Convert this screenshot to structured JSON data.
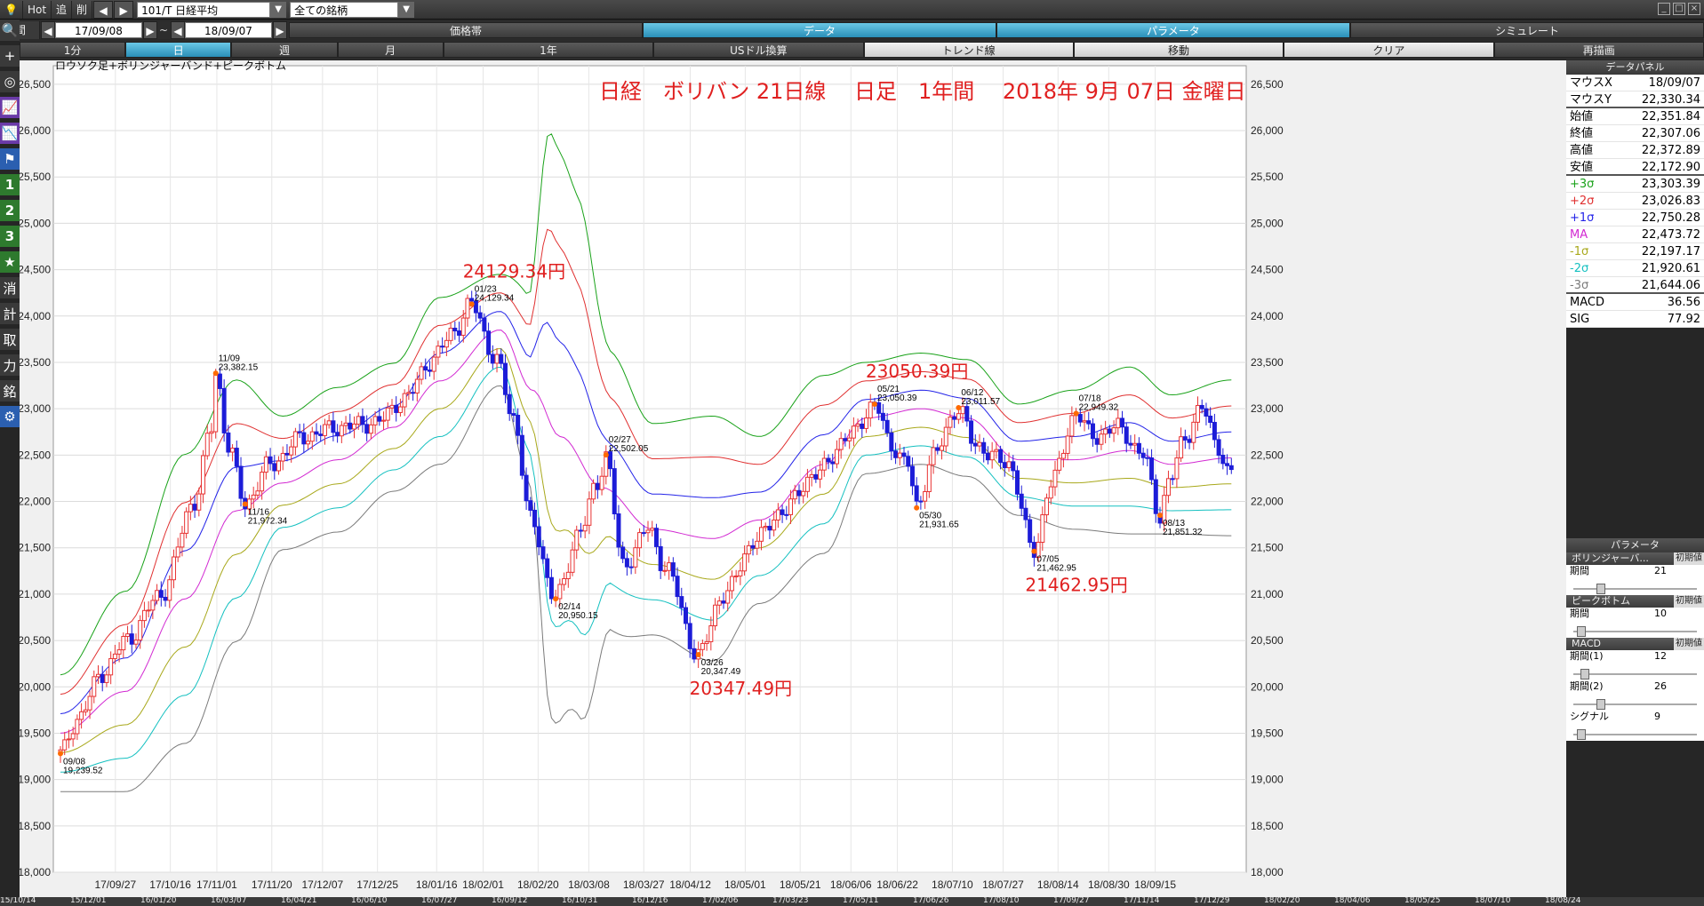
{
  "toolbar": {
    "hot": "Hot",
    "add": "追",
    "del": "削",
    "symbol": "101/T 日経平均",
    "all_symbols": "全ての銘柄",
    "period_label": "期間",
    "date_from": "17/09/08",
    "tilde": "~",
    "date_to": "18/09/07"
  },
  "tabs_row1": [
    "価格帯",
    "データ",
    "パラメータ",
    "シミュレート"
  ],
  "tabs_row2": [
    "1分",
    "日",
    "週",
    "月",
    "1年",
    "USドル換算",
    "トレンド線",
    "移動",
    "クリア",
    "再描画"
  ],
  "left_tools": [
    "🔍",
    "+",
    "◎",
    "📈",
    "📉",
    "⚑",
    "1",
    "2",
    "3",
    "★",
    "消",
    "計",
    "取",
    "力",
    "銘",
    "⚙"
  ],
  "chart_data": {
    "type": "candlestick",
    "chart_label": "ロウソク足+ボリンジャーバンド+ピークボトム",
    "title": "日経　ボリバン 21日線　 日足　1年間　 2018年 9月 07日 金曜日",
    "ylim": [
      18000,
      26700
    ],
    "yticks": [
      18000,
      18500,
      19000,
      19500,
      20000,
      20500,
      21000,
      21500,
      22000,
      22500,
      23000,
      23500,
      24000,
      24500,
      25000,
      25500,
      26000,
      26500
    ],
    "ytick_labels": [
      "18,000",
      "18,500",
      "19,000",
      "19,500",
      "20,000",
      "20,500",
      "21,000",
      "21,500",
      "22,000",
      "22,500",
      "23,000",
      "23,500",
      "24,000",
      "24,500",
      "25,000",
      "25,500",
      "26,000",
      "26,500"
    ],
    "xtick_labels": [
      "17/09/27",
      "17/10/16",
      "17/11/01",
      "17/11/20",
      "17/12/07",
      "17/12/25",
      "18/01/16",
      "18/02/01",
      "18/02/20",
      "18/03/08",
      "18/03/27",
      "18/04/12",
      "18/05/01",
      "18/05/21",
      "18/06/06",
      "18/06/22",
      "18/07/10",
      "18/07/27",
      "18/08/14",
      "18/08/30",
      "18/09/15"
    ],
    "xtick_index": [
      13,
      26,
      37,
      50,
      62,
      75,
      89,
      100,
      113,
      125,
      138,
      149,
      162,
      175,
      187,
      198,
      211,
      223,
      236,
      248,
      259
    ],
    "n": 254,
    "mid_knots": [
      [
        0,
        19500
      ],
      [
        14,
        19950
      ],
      [
        27,
        20950
      ],
      [
        38,
        21900
      ],
      [
        48,
        22200
      ],
      [
        60,
        22450
      ],
      [
        72,
        22800
      ],
      [
        82,
        23300
      ],
      [
        95,
        23850
      ],
      [
        102,
        23200
      ],
      [
        108,
        22700
      ],
      [
        117,
        22150
      ],
      [
        128,
        21700
      ],
      [
        141,
        21600
      ],
      [
        151,
        21800
      ],
      [
        165,
        22400
      ],
      [
        174,
        22900
      ],
      [
        186,
        23000
      ],
      [
        196,
        22900
      ],
      [
        207,
        22450
      ],
      [
        219,
        22450
      ],
      [
        231,
        22550
      ],
      [
        240,
        22400
      ],
      [
        253,
        22470
      ]
    ],
    "sd_knots": [
      [
        0,
        210
      ],
      [
        14,
        360
      ],
      [
        27,
        520
      ],
      [
        38,
        470
      ],
      [
        48,
        240
      ],
      [
        60,
        260
      ],
      [
        72,
        230
      ],
      [
        82,
        300
      ],
      [
        95,
        200
      ],
      [
        101,
        330
      ],
      [
        106,
        1050
      ],
      [
        112,
        930
      ],
      [
        119,
        500
      ],
      [
        128,
        380
      ],
      [
        141,
        440
      ],
      [
        151,
        300
      ],
      [
        165,
        320
      ],
      [
        174,
        200
      ],
      [
        186,
        200
      ],
      [
        196,
        210
      ],
      [
        207,
        200
      ],
      [
        219,
        250
      ],
      [
        231,
        300
      ],
      [
        240,
        250
      ],
      [
        253,
        280
      ]
    ],
    "band_colors": {
      "p3": "#19a219",
      "p2": "#e03030",
      "p1": "#2323e8",
      "ma": "#d22ad2",
      "m1": "#a8a81a",
      "m2": "#14c0c0",
      "m3": "#7a7a7a"
    },
    "up_color": "#e83333",
    "down_color": "#1c1cd8",
    "price_knots": [
      [
        0,
        19280
      ],
      [
        4,
        19650
      ],
      [
        10,
        20150
      ],
      [
        16,
        20520
      ],
      [
        24,
        21000
      ],
      [
        32,
        22000
      ],
      [
        36,
        22800
      ],
      [
        37,
        23382
      ],
      [
        40,
        22600
      ],
      [
        44,
        21972
      ],
      [
        50,
        22400
      ],
      [
        58,
        22700
      ],
      [
        66,
        22800
      ],
      [
        75,
        22850
      ],
      [
        82,
        23100
      ],
      [
        88,
        23500
      ],
      [
        94,
        23850
      ],
      [
        98,
        24129
      ],
      [
        104,
        23500
      ],
      [
        108,
        22900
      ],
      [
        112,
        21800
      ],
      [
        118,
        20950
      ],
      [
        124,
        21700
      ],
      [
        128,
        22200
      ],
      [
        130,
        22502
      ],
      [
        134,
        21300
      ],
      [
        140,
        21700
      ],
      [
        144,
        21300
      ],
      [
        152,
        20347
      ],
      [
        158,
        21000
      ],
      [
        166,
        21600
      ],
      [
        172,
        21900
      ],
      [
        180,
        22300
      ],
      [
        188,
        22700
      ],
      [
        194,
        23050
      ],
      [
        198,
        22600
      ],
      [
        202,
        22400
      ],
      [
        204,
        21931
      ],
      [
        208,
        22500
      ],
      [
        214,
        23011
      ],
      [
        218,
        22600
      ],
      [
        226,
        22400
      ],
      [
        232,
        21462
      ],
      [
        236,
        22200
      ],
      [
        242,
        22949
      ],
      [
        246,
        22700
      ],
      [
        252,
        22800
      ],
      [
        258,
        22500
      ],
      [
        262,
        21851
      ],
      [
        264,
        22200
      ],
      [
        268,
        22700
      ],
      [
        272,
        23000
      ],
      [
        276,
        22600
      ],
      [
        278,
        22300
      ]
    ],
    "peaks": [
      {
        "i": 0,
        "date": "09/08",
        "value": "19,239.52",
        "pos": "below"
      },
      {
        "i": 37,
        "date": "11/09",
        "value": "23,382.15",
        "pos": "above"
      },
      {
        "i": 44,
        "date": "11/16",
        "value": "21,972.34",
        "pos": "below"
      },
      {
        "i": 98,
        "date": "01/23",
        "value": "24,129.34",
        "pos": "above"
      },
      {
        "i": 118,
        "date": "02/14",
        "value": "20,950.15",
        "pos": "below"
      },
      {
        "i": 130,
        "date": "02/27",
        "value": "22,502.05",
        "pos": "above"
      },
      {
        "i": 152,
        "date": "03/26",
        "value": "20,347.49",
        "pos": "below"
      },
      {
        "i": 194,
        "date": "05/21",
        "value": "23,050.39",
        "pos": "above"
      },
      {
        "i": 204,
        "date": "05/30",
        "value": "21,931.65",
        "pos": "below"
      },
      {
        "i": 214,
        "date": "06/12",
        "value": "23,011.57",
        "pos": "above"
      },
      {
        "i": 232,
        "date": "07/05",
        "value": "21,462.95",
        "pos": "below"
      },
      {
        "i": 242,
        "date": "07/18",
        "value": "22,949.32",
        "pos": "above"
      },
      {
        "i": 262,
        "date": "08/13",
        "value": "21,851.32",
        "pos": "below"
      }
    ],
    "big_labels": [
      {
        "text": "24129.34円",
        "i": 98,
        "v": 24129.34,
        "dy": -30
      },
      {
        "text": "23050.39円",
        "i": 194,
        "v": 23050.39,
        "dy": -30
      },
      {
        "text": "20347.49円",
        "i": 152,
        "v": 20347.49,
        "dy": 45
      },
      {
        "text": "21462.95円",
        "i": 232,
        "v": 21462.95,
        "dy": 45
      }
    ]
  },
  "data_panel": {
    "header": "データパネル",
    "rows": [
      {
        "k": "マウスX",
        "v": "18/09/07",
        "c": "#000"
      },
      {
        "k": "マウスY",
        "v": "22,330.34",
        "c": "#000",
        "div": true
      },
      {
        "k": "始値",
        "v": "22,351.84",
        "c": "#000"
      },
      {
        "k": "終値",
        "v": "22,307.06",
        "c": "#000"
      },
      {
        "k": "高値",
        "v": "22,372.89",
        "c": "#000"
      },
      {
        "k": "安値",
        "v": "22,172.90",
        "c": "#000",
        "div": true
      },
      {
        "k": "+3σ",
        "v": "23,303.39",
        "c": "#19a219"
      },
      {
        "k": "+2σ",
        "v": "23,026.83",
        "c": "#e03030"
      },
      {
        "k": "+1σ",
        "v": "22,750.28",
        "c": "#2323e8"
      },
      {
        "k": "MA",
        "v": "22,473.72",
        "c": "#d22ad2"
      },
      {
        "k": "-1σ",
        "v": "22,197.17",
        "c": "#a8a81a"
      },
      {
        "k": "-2σ",
        "v": "21,920.61",
        "c": "#14c0c0"
      },
      {
        "k": "-3σ",
        "v": "21,644.06",
        "c": "#7a7a7a",
        "div": true
      },
      {
        "k": "MACD",
        "v": "36.56",
        "c": "#000"
      },
      {
        "k": "SIG",
        "v": "77.92",
        "c": "#000"
      }
    ]
  },
  "params": {
    "header": "パラメータ",
    "groups": [
      {
        "name": "ボリンジャーバ...",
        "init": "初期値",
        "items": [
          {
            "label": "期間",
            "value": "21",
            "pos": 0.2
          }
        ]
      },
      {
        "name": "ピークボトム",
        "init": "初期値",
        "items": [
          {
            "label": "期間",
            "value": "10",
            "pos": 0.03
          }
        ]
      },
      {
        "name": "MACD",
        "init": "初期値",
        "items": [
          {
            "label": "期間(1)",
            "value": "12",
            "pos": 0.06
          },
          {
            "label": "期間(2)",
            "value": "26",
            "pos": 0.2
          },
          {
            "label": "シグナル",
            "value": "9",
            "pos": 0.03
          }
        ]
      }
    ]
  },
  "bottom_dates": [
    "15/10/14",
    "15/12/01",
    "16/01/20",
    "16/03/07",
    "16/04/21",
    "16/06/10",
    "16/07/27",
    "16/09/12",
    "16/10/31",
    "16/12/16",
    "17/02/06",
    "17/03/23",
    "17/05/11",
    "17/06/26",
    "17/08/10",
    "17/09/27",
    "17/11/14",
    "17/12/29",
    "18/02/20",
    "18/04/06",
    "18/05/25",
    "18/07/10",
    "18/08/24"
  ]
}
